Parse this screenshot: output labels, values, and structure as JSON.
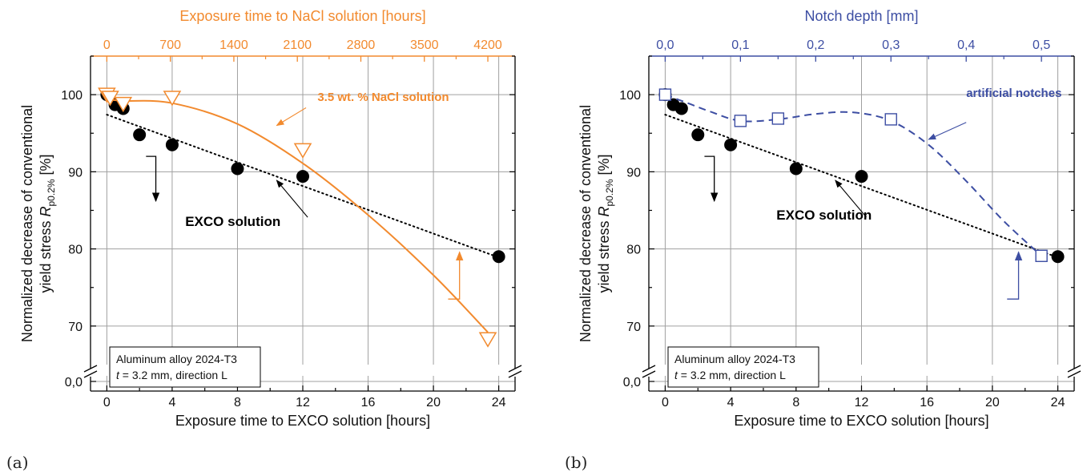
{
  "chart_data": [
    {
      "panel_label": "(a)",
      "type": "scatter",
      "xlabel": "Exposure time to EXCO solution [hours]",
      "ylabel_line1": "Normalized decrease of conventional",
      "ylabel_line2_prefix": "yield stress ",
      "ylabel_symbol": "R",
      "ylabel_subscript": "p0.2%",
      "ylabel_suffix": " [%]",
      "xlim": [
        -1,
        25
      ],
      "xticks": [
        "0",
        "4",
        "8",
        "12",
        "16",
        "20",
        "24"
      ],
      "ylim_upper": [
        65,
        105
      ],
      "yticks": [
        "70",
        "80",
        "90",
        "100"
      ],
      "ybreak_tick": "0,0",
      "grid": true,
      "top_axis": {
        "label": "Exposure time to NaCl solution [hours]",
        "color": "#f28a2e",
        "ticks": [
          "0",
          "700",
          "1400",
          "2100",
          "2800",
          "3500",
          "4200"
        ],
        "units_per_bottom_unit": 180
      },
      "series": [
        {
          "axis": "bottom",
          "marker": "filled-circle",
          "color": "#000000",
          "x": [
            0,
            0.5,
            1,
            2,
            4,
            8,
            12,
            24
          ],
          "y": [
            100,
            98.7,
            98.2,
            94.8,
            93.5,
            90.4,
            89.4,
            79
          ],
          "trend": {
            "style": "dotted",
            "x": [
              0,
              24
            ],
            "y": [
              97.4,
              78.9
            ]
          }
        },
        {
          "axis": "top",
          "marker": "open-triangle-down",
          "color": "#f28a2e",
          "x": [
            0,
            36,
            180,
            720,
            2160,
            4200
          ],
          "y": [
            100,
            99.6,
            98.8,
            99.6,
            92.8,
            68.3
          ],
          "trend": {
            "style": "solid",
            "x": [
              0,
              180,
              720,
              1440,
              2160,
              2880,
              3600,
              4200
            ],
            "y": [
              99.4,
              99.2,
              98.9,
              96.2,
              91.1,
              84.4,
              76.6,
              69.2
            ]
          }
        }
      ],
      "annotations": {
        "nacl_label": "3.5 wt. % NaCl solution",
        "exco_label": "EXCO solution",
        "info_line1": "Aluminum alloy 2024-T3",
        "info_line2_var": "t",
        "info_line2_rest": " = 3.2 mm, direction L"
      }
    },
    {
      "panel_label": "(b)",
      "type": "scatter",
      "xlabel": "Exposure time to EXCO solution [hours]",
      "ylabel_line1": "Normalized decrease of conventional",
      "ylabel_line2_prefix": "yield stress ",
      "ylabel_symbol": "R",
      "ylabel_subscript": "p0.2%",
      "ylabel_suffix": " [%]",
      "xlim": [
        -1,
        25
      ],
      "xticks": [
        "0",
        "4",
        "8",
        "12",
        "16",
        "20",
        "24"
      ],
      "ylim_upper": [
        65,
        105
      ],
      "yticks": [
        "70",
        "80",
        "90",
        "100"
      ],
      "ybreak_tick": "0,0",
      "grid": true,
      "top_axis": {
        "label": "Notch depth [mm]",
        "color": "#3d4ea3",
        "ticks": [
          "0,0",
          "0,1",
          "0,2",
          "0,3",
          "0,4",
          "0,5"
        ],
        "units_per_bottom_unit": 0.02174
      },
      "series": [
        {
          "axis": "bottom",
          "marker": "filled-circle",
          "color": "#000000",
          "x": [
            0,
            0.5,
            1,
            2,
            4,
            8,
            12,
            24
          ],
          "y": [
            100,
            98.7,
            98.2,
            94.8,
            93.5,
            90.4,
            89.4,
            79
          ],
          "trend": {
            "style": "dotted",
            "x": [
              0,
              24
            ],
            "y": [
              97.4,
              78.9
            ]
          }
        },
        {
          "axis": "top",
          "marker": "open-square",
          "color": "#3d4ea3",
          "x": [
            0,
            0.1,
            0.15,
            0.3,
            0.5
          ],
          "y": [
            100,
            96.6,
            96.9,
            96.8,
            79.1
          ],
          "trend": {
            "style": "dashed",
            "x": [
              0,
              0.03,
              0.06,
              0.1,
              0.15,
              0.2,
              0.25,
              0.3,
              0.35,
              0.4,
              0.45,
              0.5
            ],
            "y": [
              100,
              98.9,
              97.8,
              96.6,
              96.8,
              97.5,
              97.7,
              96.6,
              93.5,
              88.8,
              83.6,
              79.1
            ]
          }
        }
      ],
      "annotations": {
        "notch_label": "artificial notches",
        "exco_label": "EXCO solution",
        "info_line1": "Aluminum alloy 2024-T3",
        "info_line2_var": "t",
        "info_line2_rest": " = 3.2 mm, direction L"
      }
    }
  ]
}
